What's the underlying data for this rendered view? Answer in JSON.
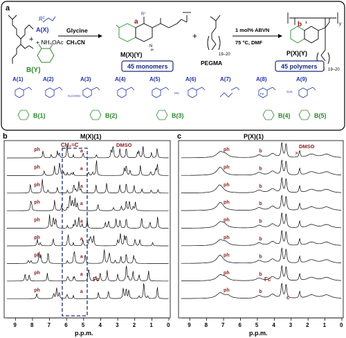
{
  "panel_a": {
    "letter": "a",
    "reagent_ax": "A(X)",
    "r1": "R",
    "r1_sup": "1",
    "nh4oac": "+ NH₄OAc",
    "plus1": "+",
    "plus2": "+",
    "by": "B(Y)",
    "glycine": "Glycine",
    "solvent": "CH₃CN",
    "monomer": "M(X)(Y)",
    "monomer_box": "45 monomers",
    "pegma": "PEGMA",
    "peg_sub": "19–20",
    "peg_sub2": "19–20",
    "cond1": "1 mol% ABVN",
    "cond2": "75 °C, DMF",
    "polymer": "P(X)(Y)",
    "polymer_box": "45 polymers",
    "atom_a": "a",
    "atom_b": "b",
    "atom_c": "c",
    "sub_x": "x",
    "sub_y": "y",
    "aldehydes": [
      "A(1)",
      "A(2)",
      "A(3)",
      "A(4)",
      "A(5)",
      "A(6)",
      "A(7)",
      "A(8)",
      "A(9)"
    ],
    "diketones": [
      "B(1)",
      "B(2)",
      "B(3)",
      "B(4)",
      "B(5)"
    ],
    "small_labels": {
      "cooch3": "H₃COOC",
      "no2": "O₂N",
      "fe": "Fe",
      "ho": "HO"
    }
  },
  "panel_b": {
    "letter": "b",
    "title": "M(X)(1)",
    "xlabel": "p.p.m.",
    "ticks": [
      "9",
      "8",
      "7",
      "6",
      "5",
      "4",
      "3",
      "2",
      "1",
      "0"
    ],
    "ch2c": "CH₂=C",
    "dmso": "DMSO",
    "ph": "ph",
    "a": "a",
    "fc": "Fc"
  },
  "panel_c": {
    "letter": "c",
    "title": "P(X)(1)",
    "xlabel": "p.p.m.",
    "ticks": [
      "9",
      "8",
      "7",
      "6",
      "5",
      "4",
      "3",
      "2",
      "1",
      "0"
    ],
    "dmso": "DMSO",
    "ph": "ph",
    "b": "b",
    "c": "c",
    "fc": "Fc"
  },
  "colors": {
    "blue": "#2233aa",
    "green": "#2a8a2a",
    "red": "#8b1a1a",
    "navy": "#1a2a7a",
    "black": "#000000"
  }
}
